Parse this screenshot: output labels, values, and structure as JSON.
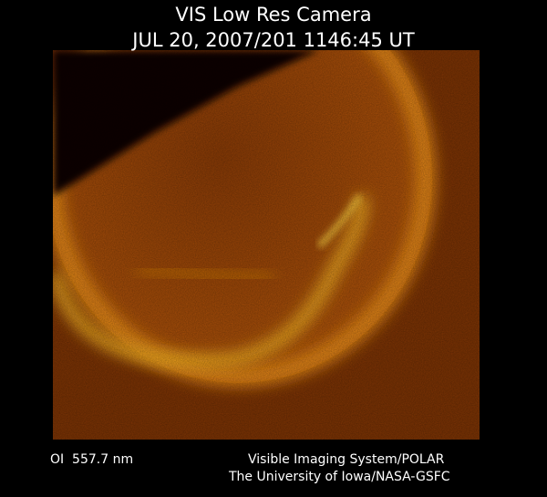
{
  "header": {
    "title": "VIS Low Res Camera",
    "timestamp": "JUL 20, 2007/201 1146:45 UT"
  },
  "footer": {
    "wavelength": "OI  557.7 nm",
    "instrument": "Visible Imaging System/POLAR",
    "institution": "The University of Iowa/NASA-GSFC"
  }
}
